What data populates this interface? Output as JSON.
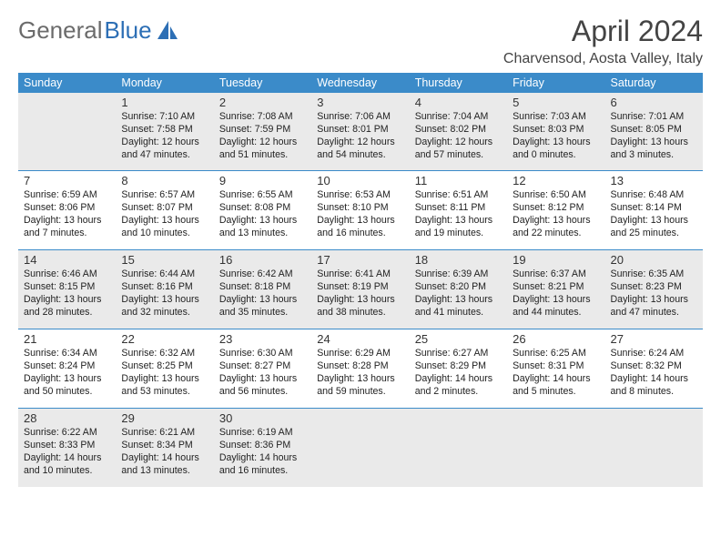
{
  "brand": {
    "part1": "General",
    "part2": "Blue"
  },
  "header": {
    "title": "April 2024",
    "location": "Charvensod, Aosta Valley, Italy"
  },
  "colors": {
    "header_bg": "#3b8bc9",
    "header_text": "#ffffff",
    "row_alt_bg": "#eaeaea",
    "cell_border": "#3b8bc9",
    "logo_gray": "#6b6b6b",
    "logo_blue": "#2d6fb5",
    "title_color": "#444444",
    "text_color": "#222222"
  },
  "daynames": [
    "Sunday",
    "Monday",
    "Tuesday",
    "Wednesday",
    "Thursday",
    "Friday",
    "Saturday"
  ],
  "weeks": [
    {
      "alt": true,
      "days": [
        {
          "n": "",
          "sr": "",
          "ss": "",
          "dl1": "",
          "dl2": ""
        },
        {
          "n": "1",
          "sr": "Sunrise: 7:10 AM",
          "ss": "Sunset: 7:58 PM",
          "dl1": "Daylight: 12 hours",
          "dl2": "and 47 minutes."
        },
        {
          "n": "2",
          "sr": "Sunrise: 7:08 AM",
          "ss": "Sunset: 7:59 PM",
          "dl1": "Daylight: 12 hours",
          "dl2": "and 51 minutes."
        },
        {
          "n": "3",
          "sr": "Sunrise: 7:06 AM",
          "ss": "Sunset: 8:01 PM",
          "dl1": "Daylight: 12 hours",
          "dl2": "and 54 minutes."
        },
        {
          "n": "4",
          "sr": "Sunrise: 7:04 AM",
          "ss": "Sunset: 8:02 PM",
          "dl1": "Daylight: 12 hours",
          "dl2": "and 57 minutes."
        },
        {
          "n": "5",
          "sr": "Sunrise: 7:03 AM",
          "ss": "Sunset: 8:03 PM",
          "dl1": "Daylight: 13 hours",
          "dl2": "and 0 minutes."
        },
        {
          "n": "6",
          "sr": "Sunrise: 7:01 AM",
          "ss": "Sunset: 8:05 PM",
          "dl1": "Daylight: 13 hours",
          "dl2": "and 3 minutes."
        }
      ]
    },
    {
      "alt": false,
      "days": [
        {
          "n": "7",
          "sr": "Sunrise: 6:59 AM",
          "ss": "Sunset: 8:06 PM",
          "dl1": "Daylight: 13 hours",
          "dl2": "and 7 minutes."
        },
        {
          "n": "8",
          "sr": "Sunrise: 6:57 AM",
          "ss": "Sunset: 8:07 PM",
          "dl1": "Daylight: 13 hours",
          "dl2": "and 10 minutes."
        },
        {
          "n": "9",
          "sr": "Sunrise: 6:55 AM",
          "ss": "Sunset: 8:08 PM",
          "dl1": "Daylight: 13 hours",
          "dl2": "and 13 minutes."
        },
        {
          "n": "10",
          "sr": "Sunrise: 6:53 AM",
          "ss": "Sunset: 8:10 PM",
          "dl1": "Daylight: 13 hours",
          "dl2": "and 16 minutes."
        },
        {
          "n": "11",
          "sr": "Sunrise: 6:51 AM",
          "ss": "Sunset: 8:11 PM",
          "dl1": "Daylight: 13 hours",
          "dl2": "and 19 minutes."
        },
        {
          "n": "12",
          "sr": "Sunrise: 6:50 AM",
          "ss": "Sunset: 8:12 PM",
          "dl1": "Daylight: 13 hours",
          "dl2": "and 22 minutes."
        },
        {
          "n": "13",
          "sr": "Sunrise: 6:48 AM",
          "ss": "Sunset: 8:14 PM",
          "dl1": "Daylight: 13 hours",
          "dl2": "and 25 minutes."
        }
      ]
    },
    {
      "alt": true,
      "days": [
        {
          "n": "14",
          "sr": "Sunrise: 6:46 AM",
          "ss": "Sunset: 8:15 PM",
          "dl1": "Daylight: 13 hours",
          "dl2": "and 28 minutes."
        },
        {
          "n": "15",
          "sr": "Sunrise: 6:44 AM",
          "ss": "Sunset: 8:16 PM",
          "dl1": "Daylight: 13 hours",
          "dl2": "and 32 minutes."
        },
        {
          "n": "16",
          "sr": "Sunrise: 6:42 AM",
          "ss": "Sunset: 8:18 PM",
          "dl1": "Daylight: 13 hours",
          "dl2": "and 35 minutes."
        },
        {
          "n": "17",
          "sr": "Sunrise: 6:41 AM",
          "ss": "Sunset: 8:19 PM",
          "dl1": "Daylight: 13 hours",
          "dl2": "and 38 minutes."
        },
        {
          "n": "18",
          "sr": "Sunrise: 6:39 AM",
          "ss": "Sunset: 8:20 PM",
          "dl1": "Daylight: 13 hours",
          "dl2": "and 41 minutes."
        },
        {
          "n": "19",
          "sr": "Sunrise: 6:37 AM",
          "ss": "Sunset: 8:21 PM",
          "dl1": "Daylight: 13 hours",
          "dl2": "and 44 minutes."
        },
        {
          "n": "20",
          "sr": "Sunrise: 6:35 AM",
          "ss": "Sunset: 8:23 PM",
          "dl1": "Daylight: 13 hours",
          "dl2": "and 47 minutes."
        }
      ]
    },
    {
      "alt": false,
      "days": [
        {
          "n": "21",
          "sr": "Sunrise: 6:34 AM",
          "ss": "Sunset: 8:24 PM",
          "dl1": "Daylight: 13 hours",
          "dl2": "and 50 minutes."
        },
        {
          "n": "22",
          "sr": "Sunrise: 6:32 AM",
          "ss": "Sunset: 8:25 PM",
          "dl1": "Daylight: 13 hours",
          "dl2": "and 53 minutes."
        },
        {
          "n": "23",
          "sr": "Sunrise: 6:30 AM",
          "ss": "Sunset: 8:27 PM",
          "dl1": "Daylight: 13 hours",
          "dl2": "and 56 minutes."
        },
        {
          "n": "24",
          "sr": "Sunrise: 6:29 AM",
          "ss": "Sunset: 8:28 PM",
          "dl1": "Daylight: 13 hours",
          "dl2": "and 59 minutes."
        },
        {
          "n": "25",
          "sr": "Sunrise: 6:27 AM",
          "ss": "Sunset: 8:29 PM",
          "dl1": "Daylight: 14 hours",
          "dl2": "and 2 minutes."
        },
        {
          "n": "26",
          "sr": "Sunrise: 6:25 AM",
          "ss": "Sunset: 8:31 PM",
          "dl1": "Daylight: 14 hours",
          "dl2": "and 5 minutes."
        },
        {
          "n": "27",
          "sr": "Sunrise: 6:24 AM",
          "ss": "Sunset: 8:32 PM",
          "dl1": "Daylight: 14 hours",
          "dl2": "and 8 minutes."
        }
      ]
    },
    {
      "alt": true,
      "days": [
        {
          "n": "28",
          "sr": "Sunrise: 6:22 AM",
          "ss": "Sunset: 8:33 PM",
          "dl1": "Daylight: 14 hours",
          "dl2": "and 10 minutes."
        },
        {
          "n": "29",
          "sr": "Sunrise: 6:21 AM",
          "ss": "Sunset: 8:34 PM",
          "dl1": "Daylight: 14 hours",
          "dl2": "and 13 minutes."
        },
        {
          "n": "30",
          "sr": "Sunrise: 6:19 AM",
          "ss": "Sunset: 8:36 PM",
          "dl1": "Daylight: 14 hours",
          "dl2": "and 16 minutes."
        },
        {
          "n": "",
          "sr": "",
          "ss": "",
          "dl1": "",
          "dl2": ""
        },
        {
          "n": "",
          "sr": "",
          "ss": "",
          "dl1": "",
          "dl2": ""
        },
        {
          "n": "",
          "sr": "",
          "ss": "",
          "dl1": "",
          "dl2": ""
        },
        {
          "n": "",
          "sr": "",
          "ss": "",
          "dl1": "",
          "dl2": ""
        }
      ]
    }
  ]
}
